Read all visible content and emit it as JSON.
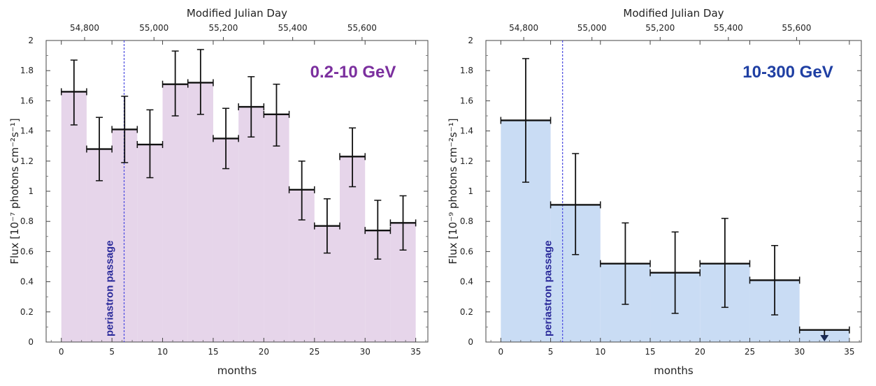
{
  "chart_data": [
    {
      "type": "bar",
      "panel_id": "left",
      "title": "0.2-10 GeV",
      "title_color": "#7B2F9E",
      "fill_color": "#E6D5EA",
      "xlabel": "months",
      "ylabel": "Flux [10⁻⁷ photons cm⁻²s⁻¹]",
      "top_xlabel": "Modified Julian Day",
      "xlim": [
        -1.5,
        36.2
      ],
      "ylim": [
        0,
        2
      ],
      "xticks": [
        0,
        5,
        10,
        15,
        20,
        25,
        30,
        35
      ],
      "xtick_labels": [
        "0",
        "5",
        "10",
        "15",
        "20",
        "25",
        "30",
        "35"
      ],
      "yticks": [
        0,
        0.2,
        0.4,
        0.6,
        0.8,
        1,
        1.2,
        1.4,
        1.6,
        1.8,
        2
      ],
      "ytick_labels": [
        "0",
        "0.2",
        "0.4",
        "0.6",
        "0.8",
        "1",
        "1.2",
        "1.4",
        "1.6",
        "1.8",
        "2"
      ],
      "top_ticks": [
        2.3,
        9.15,
        16.0,
        22.85,
        29.7
      ],
      "top_tick_labels": [
        "54,800",
        "55,000",
        "55,200",
        "55,400",
        "55,600"
      ],
      "periastron": {
        "x": 6.2,
        "label": "periastron passage"
      },
      "bins": [
        {
          "x0": 0.0,
          "x1": 2.5,
          "y": 1.66,
          "lo": 1.44,
          "hi": 1.87
        },
        {
          "x0": 2.5,
          "x1": 5.0,
          "y": 1.28,
          "lo": 1.07,
          "hi": 1.49
        },
        {
          "x0": 5.0,
          "x1": 7.5,
          "y": 1.41,
          "lo": 1.19,
          "hi": 1.63
        },
        {
          "x0": 7.5,
          "x1": 10.0,
          "y": 1.31,
          "lo": 1.09,
          "hi": 1.54
        },
        {
          "x0": 10.0,
          "x1": 12.5,
          "y": 1.71,
          "lo": 1.5,
          "hi": 1.93
        },
        {
          "x0": 12.5,
          "x1": 15.0,
          "y": 1.72,
          "lo": 1.51,
          "hi": 1.94
        },
        {
          "x0": 15.0,
          "x1": 17.5,
          "y": 1.35,
          "lo": 1.15,
          "hi": 1.55
        },
        {
          "x0": 17.5,
          "x1": 20.0,
          "y": 1.56,
          "lo": 1.36,
          "hi": 1.76
        },
        {
          "x0": 20.0,
          "x1": 22.5,
          "y": 1.51,
          "lo": 1.3,
          "hi": 1.71
        },
        {
          "x0": 22.5,
          "x1": 25.0,
          "y": 1.01,
          "lo": 0.81,
          "hi": 1.2
        },
        {
          "x0": 25.0,
          "x1": 27.5,
          "y": 0.77,
          "lo": 0.59,
          "hi": 0.95
        },
        {
          "x0": 27.5,
          "x1": 30.0,
          "y": 1.23,
          "lo": 1.03,
          "hi": 1.42
        },
        {
          "x0": 30.0,
          "x1": 32.5,
          "y": 0.74,
          "lo": 0.55,
          "hi": 0.94
        },
        {
          "x0": 32.5,
          "x1": 35.0,
          "y": 0.79,
          "lo": 0.61,
          "hi": 0.97
        }
      ]
    },
    {
      "type": "bar",
      "panel_id": "right",
      "title": "10-300 GeV",
      "title_color": "#1F3FA3",
      "fill_color": "#C9DCF4",
      "xlabel": "months",
      "ylabel": "Flux [10⁻⁹ photons cm⁻²s⁻¹]",
      "top_xlabel": "Modified Julian Day",
      "xlim": [
        -1.5,
        36.2
      ],
      "ylim": [
        0,
        2
      ],
      "xticks": [
        0,
        5,
        10,
        15,
        20,
        25,
        30,
        35
      ],
      "xtick_labels": [
        "0",
        "5",
        "10",
        "15",
        "20",
        "25",
        "30",
        "35"
      ],
      "yticks": [
        0,
        0.2,
        0.4,
        0.6,
        0.8,
        1,
        1.2,
        1.4,
        1.6,
        1.8,
        2
      ],
      "ytick_labels": [
        "0",
        "0.2",
        "0.4",
        "0.6",
        "0.8",
        "1",
        "1.2",
        "1.4",
        "1.6",
        "1.8",
        "2"
      ],
      "top_ticks": [
        2.3,
        9.15,
        16.0,
        22.85,
        29.7
      ],
      "top_tick_labels": [
        "54,800",
        "55,000",
        "55,200",
        "55,400",
        "55,600"
      ],
      "periastron": {
        "x": 6.2,
        "label": "periastron passage"
      },
      "bins": [
        {
          "x0": 0.0,
          "x1": 5.0,
          "y": 1.47,
          "lo": 1.06,
          "hi": 1.88
        },
        {
          "x0": 5.0,
          "x1": 10.0,
          "y": 0.91,
          "lo": 0.58,
          "hi": 1.25
        },
        {
          "x0": 10.0,
          "x1": 15.0,
          "y": 0.52,
          "lo": 0.25,
          "hi": 0.79
        },
        {
          "x0": 15.0,
          "x1": 20.0,
          "y": 0.46,
          "lo": 0.19,
          "hi": 0.73
        },
        {
          "x0": 20.0,
          "x1": 25.0,
          "y": 0.52,
          "lo": 0.23,
          "hi": 0.82
        },
        {
          "x0": 25.0,
          "x1": 30.0,
          "y": 0.41,
          "lo": 0.18,
          "hi": 0.64
        }
      ],
      "upper_limits": [
        {
          "x0": 30.0,
          "x1": 35.0,
          "y": 0.08
        }
      ]
    }
  ]
}
